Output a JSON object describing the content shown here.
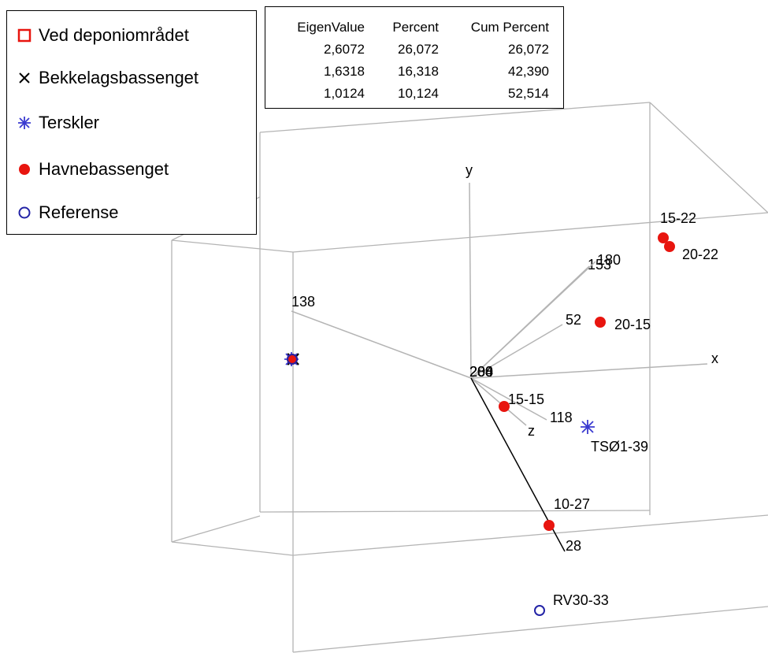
{
  "chart_data": {
    "type": "scatter",
    "title": "",
    "axis_labels": {
      "x": "x",
      "y": "y",
      "z": "z"
    },
    "legend": [
      {
        "name": "Ved deponiområdet",
        "marker": "open-square",
        "color": "#e8150f"
      },
      {
        "name": "Bekkelagsbassenget",
        "marker": "x",
        "color": "#000000"
      },
      {
        "name": "Terskler",
        "marker": "asterisk",
        "color": "#3a3ad0"
      },
      {
        "name": "Havnebassenget",
        "marker": "filled-circle",
        "color": "#e8150f"
      },
      {
        "name": "Referense",
        "marker": "open-circle",
        "color": "#2323a6"
      }
    ],
    "eigen_table": {
      "headers": [
        "EigenValue",
        "Percent",
        "Cum Percent"
      ],
      "rows": [
        [
          "2,6072",
          "26,072",
          "26,072"
        ],
        [
          "1,6318",
          "16,318",
          "42,390"
        ],
        [
          "1,0124",
          "10,124",
          "52,514"
        ]
      ]
    },
    "ray_labels": [
      "153",
      "180",
      "52",
      "138",
      "118",
      "28",
      "200",
      "208",
      "284"
    ],
    "points": [
      {
        "label": "15-22",
        "series": "Havnebassenget"
      },
      {
        "label": "20-22",
        "series": "Havnebassenget"
      },
      {
        "label": "20-15",
        "series": "Havnebassenget"
      },
      {
        "label": "15-15",
        "series": "Havnebassenget"
      },
      {
        "label": "10-27",
        "series": "Havnebassenget"
      },
      {
        "label": "TSØ1-39",
        "series": "Terskler"
      },
      {
        "label": "RV30-33",
        "series": "Referense"
      },
      {
        "label": "",
        "series": "Bekkelagsbassenget"
      },
      {
        "label": "",
        "series": "Terskler"
      },
      {
        "label": "",
        "series": "Havnebassenget"
      },
      {
        "label": "",
        "series": "Referense"
      }
    ]
  }
}
